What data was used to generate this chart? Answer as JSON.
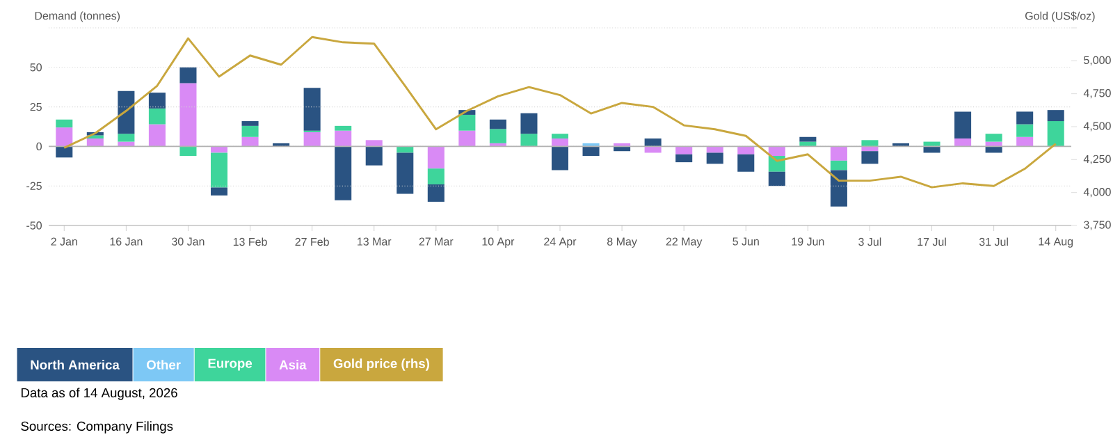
{
  "chart_data": {
    "type": "bar",
    "stacked": true,
    "categories": [
      "2 Jan",
      null,
      "16 Jan",
      null,
      "30 Jan",
      null,
      "13 Feb",
      null,
      "27 Feb",
      null,
      "13 Mar",
      null,
      "27 Mar",
      null,
      "10 Apr",
      null,
      "24 Apr",
      null,
      "8 May",
      null,
      "22 May",
      null,
      "5 Jun",
      null,
      "19 Jun",
      null,
      "3 Jul",
      null,
      "17 Jul",
      null,
      "31 Jul",
      null,
      "14 Aug"
    ],
    "series": [
      {
        "name": "Asia",
        "color": "#d98af5",
        "values": [
          12,
          5,
          3,
          14,
          40,
          -4,
          6,
          0,
          9,
          10,
          4,
          0,
          -14,
          10,
          2,
          0,
          5,
          0,
          2,
          -4,
          -5,
          -4,
          -5,
          -6,
          0,
          -9,
          -3,
          0,
          0,
          5,
          3,
          6,
          0
        ]
      },
      {
        "name": "Europe",
        "color": "#3ed59b",
        "values": [
          5,
          2,
          5,
          10,
          -6,
          -22,
          7,
          0,
          1,
          3,
          0,
          -4,
          -10,
          10,
          9,
          8,
          3,
          0,
          0,
          0,
          0,
          0,
          0,
          -10,
          3,
          -6,
          4,
          0,
          3,
          0,
          5,
          8,
          16
        ]
      },
      {
        "name": "Other",
        "color": "#7dc8f5",
        "values": [
          0,
          0,
          0,
          0,
          0,
          0,
          0,
          0,
          0,
          0,
          0,
          0,
          0,
          0,
          0,
          0,
          0,
          2,
          0,
          0,
          0,
          0,
          0,
          0,
          0,
          0,
          0,
          0,
          0,
          0,
          0,
          0,
          0
        ]
      },
      {
        "name": "North America",
        "color": "#2a5382",
        "values": [
          -7,
          2,
          27,
          10,
          10,
          -5,
          3,
          2,
          27,
          -34,
          -12,
          -26,
          -11,
          3,
          6,
          13,
          -15,
          -6,
          -3,
          5,
          -5,
          -7,
          -11,
          -9,
          3,
          -23,
          -8,
          2,
          -4,
          17,
          -4,
          8,
          7
        ]
      },
      {
        "name": "Gold price (rhs)",
        "type": "line",
        "axis": "y2",
        "color": "#c9a73e",
        "values": [
          4340,
          4450,
          4620,
          4810,
          5170,
          4880,
          5040,
          4970,
          5180,
          5140,
          5130,
          4810,
          4480,
          4620,
          4730,
          4800,
          4740,
          4600,
          4680,
          4650,
          4510,
          4480,
          4430,
          4240,
          4290,
          4090,
          4090,
          4120,
          4040,
          4070,
          4050,
          4180,
          4370
        ]
      }
    ],
    "ylabel": "Demand (tonnes)",
    "y2label": "Gold (US$/oz)",
    "ylim": [
      -50,
      75
    ],
    "yticks": [
      -50,
      -25,
      0,
      25,
      50,
      {
        "value": 75,
        "label": null
      }
    ],
    "y2lim": [
      3750,
      5250
    ],
    "y2ticks": [
      {
        "value": 3750,
        "label": "3,750"
      },
      {
        "value": 4000,
        "label": "4,000"
      },
      {
        "value": 4250,
        "label": "4,250"
      },
      {
        "value": 4500,
        "label": "4,500"
      },
      {
        "value": 4750,
        "label": "4,750"
      },
      {
        "value": 5000,
        "label": "5,000"
      },
      {
        "value": 5250,
        "label": null
      }
    ],
    "grid": "y",
    "legend": "bottom",
    "annotations": [
      "Data as of 14 August, 2026",
      "Sources: Company Filings"
    ]
  }
}
